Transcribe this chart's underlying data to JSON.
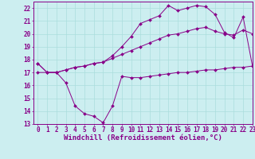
{
  "line1_x": [
    0,
    1,
    2,
    3,
    4,
    5,
    6,
    7,
    8,
    9,
    10,
    11,
    12,
    13,
    14,
    15,
    16,
    17,
    18,
    19,
    20,
    21,
    22,
    23
  ],
  "line1_y": [
    17.7,
    17.0,
    17.0,
    17.2,
    17.4,
    17.5,
    17.7,
    17.8,
    18.3,
    19.0,
    19.8,
    20.8,
    21.1,
    21.4,
    22.2,
    21.8,
    22.0,
    22.2,
    22.1,
    21.5,
    20.1,
    19.7,
    21.3,
    17.5
  ],
  "line2_x": [
    0,
    1,
    2,
    3,
    4,
    5,
    6,
    7,
    8,
    9,
    10,
    11,
    12,
    13,
    14,
    15,
    16,
    17,
    18,
    19,
    20,
    21,
    22,
    23
  ],
  "line2_y": [
    17.7,
    17.0,
    17.0,
    17.2,
    17.4,
    17.5,
    17.7,
    17.8,
    18.1,
    18.4,
    18.7,
    19.0,
    19.3,
    19.6,
    19.9,
    20.0,
    20.2,
    20.4,
    20.5,
    20.2,
    20.0,
    19.9,
    20.3,
    20.0
  ],
  "line3_x": [
    0,
    1,
    2,
    3,
    4,
    5,
    6,
    7,
    8,
    9,
    10,
    11,
    12,
    13,
    14,
    15,
    16,
    17,
    18,
    19,
    20,
    21,
    22,
    23
  ],
  "line3_y": [
    17.0,
    17.0,
    17.0,
    16.2,
    14.4,
    13.8,
    13.6,
    13.1,
    14.4,
    16.7,
    16.6,
    16.6,
    16.7,
    16.8,
    16.9,
    17.0,
    17.0,
    17.1,
    17.2,
    17.2,
    17.3,
    17.4,
    17.4,
    17.5
  ],
  "line_color": "#880088",
  "bg_color": "#cceef0",
  "grid_color": "#aadddd",
  "axis_color": "#880088",
  "xlabel": "Windchill (Refroidissement éolien,°C)",
  "xlim": [
    -0.5,
    23
  ],
  "ylim": [
    13,
    22.5
  ],
  "yticks": [
    13,
    14,
    15,
    16,
    17,
    18,
    19,
    20,
    21,
    22
  ],
  "xticks": [
    0,
    1,
    2,
    3,
    4,
    5,
    6,
    7,
    8,
    9,
    10,
    11,
    12,
    13,
    14,
    15,
    16,
    17,
    18,
    19,
    20,
    21,
    22,
    23
  ],
  "tick_fontsize": 5.5,
  "xlabel_fontsize": 6.5,
  "markersize": 2.0
}
